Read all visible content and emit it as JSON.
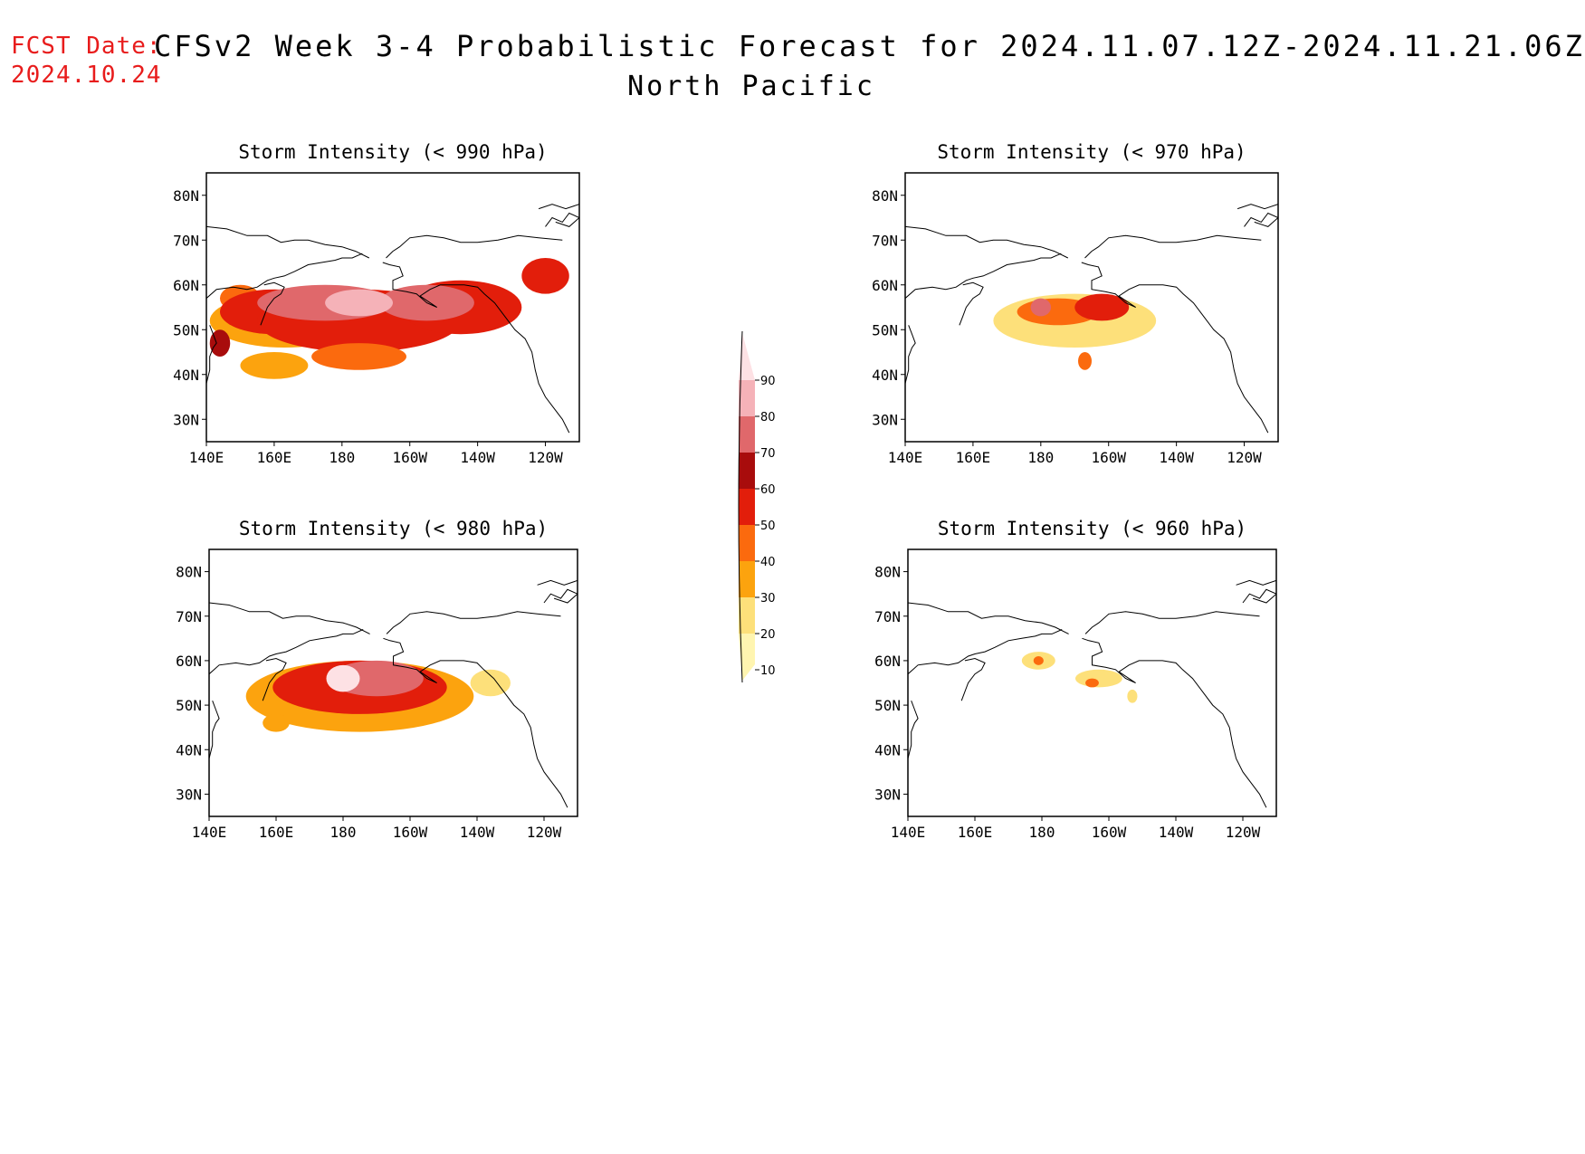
{
  "header": {
    "fcst_label": "FCST Date:",
    "fcst_date": "2024.10.24",
    "title": "CFSv2 Week 3-4 Probabilistic Forecast for 2024.11.07.12Z-2024.11.21.06Z",
    "subtitle": "North Pacific"
  },
  "colors": {
    "levels": [
      "#fff5b0",
      "#fde07a",
      "#fca30e",
      "#fb6a0e",
      "#e21e0b",
      "#a80c0c",
      "#e0686b",
      "#f5b2b8",
      "#fde1e4"
    ]
  },
  "axes": {
    "lon_labels": [
      "140E",
      "160E",
      "180",
      "160W",
      "140W",
      "120W"
    ],
    "lat_labels": [
      "80N",
      "70N",
      "60N",
      "50N",
      "40N",
      "30N"
    ]
  },
  "colorbar": {
    "ticks": [
      "10",
      "20",
      "30",
      "40",
      "50",
      "60",
      "70",
      "80",
      "90"
    ]
  },
  "panels": [
    {
      "title": "Storm Intensity (< 990 hPa)",
      "blobs": [
        {
          "lon": 150,
          "lat": 57,
          "rx": 6,
          "ry": 3,
          "level": 3
        },
        {
          "lon": 163,
          "lat": 52,
          "rx": 22,
          "ry": 6,
          "level": 2
        },
        {
          "lon": 160,
          "lat": 54,
          "rx": 16,
          "ry": 5,
          "level": 4
        },
        {
          "lon": 185,
          "lat": 52,
          "rx": 30,
          "ry": 7,
          "level": 4
        },
        {
          "lon": 215,
          "lat": 55,
          "rx": 18,
          "ry": 6,
          "level": 4
        },
        {
          "lon": 175,
          "lat": 56,
          "rx": 20,
          "ry": 4,
          "level": 6
        },
        {
          "lon": 205,
          "lat": 56,
          "rx": 14,
          "ry": 4,
          "level": 6
        },
        {
          "lon": 185,
          "lat": 56,
          "rx": 10,
          "ry": 3,
          "level": 7
        },
        {
          "lon": 160,
          "lat": 42,
          "rx": 10,
          "ry": 3,
          "level": 2
        },
        {
          "lon": 185,
          "lat": 44,
          "rx": 14,
          "ry": 3,
          "level": 3
        },
        {
          "lon": 240,
          "lat": 62,
          "rx": 7,
          "ry": 4,
          "level": 4
        },
        {
          "lon": 144,
          "lat": 47,
          "rx": 3,
          "ry": 3,
          "level": 5
        }
      ]
    },
    {
      "title": "Storm Intensity (< 970 hPa)",
      "blobs": [
        {
          "lon": 190,
          "lat": 52,
          "rx": 24,
          "ry": 6,
          "level": 1
        },
        {
          "lon": 185,
          "lat": 54,
          "rx": 12,
          "ry": 3,
          "level": 3
        },
        {
          "lon": 198,
          "lat": 55,
          "rx": 8,
          "ry": 3,
          "level": 4
        },
        {
          "lon": 180,
          "lat": 55,
          "rx": 3,
          "ry": 2,
          "level": 6
        },
        {
          "lon": 193,
          "lat": 43,
          "rx": 2,
          "ry": 2,
          "level": 3
        }
      ]
    },
    {
      "title": "Storm Intensity (< 980 hPa)",
      "blobs": [
        {
          "lon": 185,
          "lat": 52,
          "rx": 34,
          "ry": 8,
          "level": 2
        },
        {
          "lon": 185,
          "lat": 54,
          "rx": 26,
          "ry": 6,
          "level": 4
        },
        {
          "lon": 190,
          "lat": 56,
          "rx": 14,
          "ry": 4,
          "level": 6
        },
        {
          "lon": 180,
          "lat": 56,
          "rx": 5,
          "ry": 3,
          "level": 8
        },
        {
          "lon": 160,
          "lat": 46,
          "rx": 4,
          "ry": 2,
          "level": 2
        },
        {
          "lon": 224,
          "lat": 55,
          "rx": 6,
          "ry": 3,
          "level": 1
        }
      ]
    },
    {
      "title": "Storm Intensity (< 960 hPa)",
      "blobs": [
        {
          "lon": 179,
          "lat": 60,
          "rx": 5,
          "ry": 2,
          "level": 1
        },
        {
          "lon": 197,
          "lat": 56,
          "rx": 7,
          "ry": 2,
          "level": 1
        },
        {
          "lon": 195,
          "lat": 55,
          "rx": 2,
          "ry": 1,
          "level": 3
        },
        {
          "lon": 179,
          "lat": 60,
          "rx": 1.5,
          "ry": 1,
          "level": 3
        },
        {
          "lon": 207,
          "lat": 52,
          "rx": 1.5,
          "ry": 1.5,
          "level": 1
        }
      ]
    }
  ]
}
